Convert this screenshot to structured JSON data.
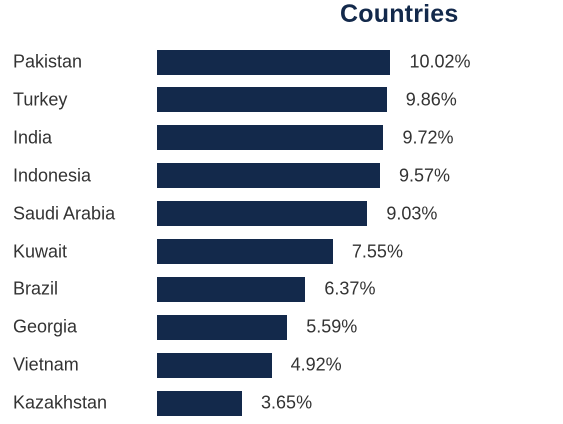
{
  "chart_data": {
    "type": "bar",
    "orientation": "horizontal",
    "title": "Countries",
    "categories": [
      "Pakistan",
      "Turkey",
      "India",
      "Indonesia",
      "Saudi Arabia",
      "Kuwait",
      "Brazil",
      "Georgia",
      "Vietnam",
      "Kazakhstan"
    ],
    "values": [
      10.02,
      9.86,
      9.72,
      9.57,
      9.03,
      7.55,
      6.37,
      5.59,
      4.92,
      3.65
    ],
    "value_labels": [
      "10.02%",
      "9.86%",
      "9.72%",
      "9.57%",
      "9.03%",
      "7.55%",
      "6.37%",
      "5.59%",
      "4.92%",
      "3.65%"
    ],
    "grid": false,
    "legend": "none"
  },
  "colors": {
    "bar": "#13294b",
    "title": "#13294b",
    "text": "#333333"
  }
}
